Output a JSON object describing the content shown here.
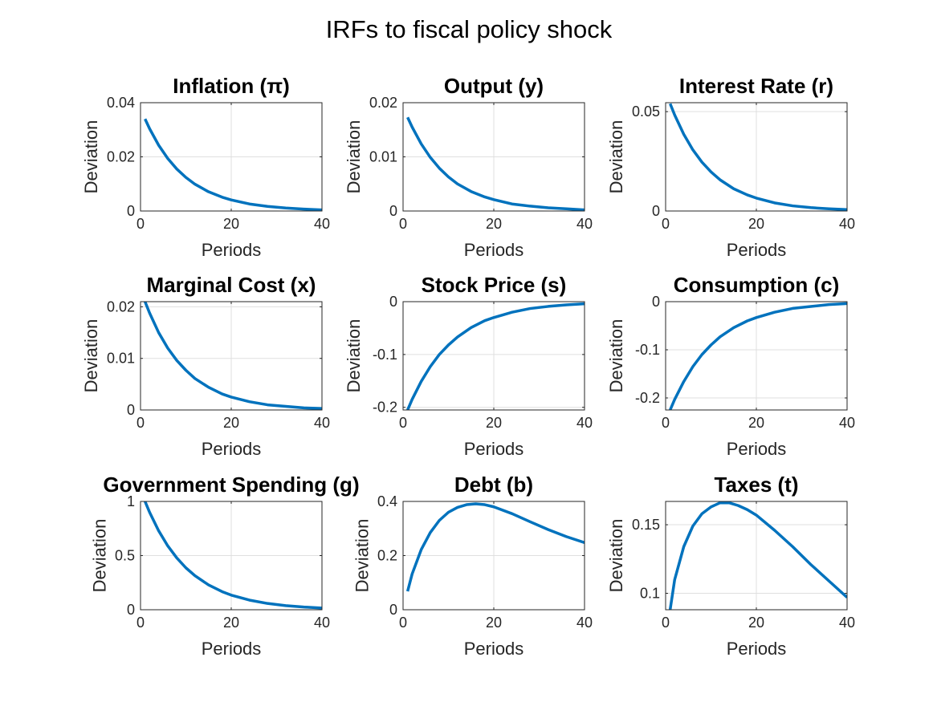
{
  "figure": {
    "title": "IRFs to fiscal policy shock",
    "line_color": "#0072BD",
    "grid": true
  },
  "chart_data": [
    {
      "type": "line",
      "title": "Inflation (π)",
      "xlabel": "Periods",
      "ylabel": "Deviation",
      "xlim": [
        0,
        40
      ],
      "ylim": [
        0,
        0.04
      ],
      "xticks": [
        0,
        20,
        40
      ],
      "xtick_labels": [
        "0",
        "20",
        "40"
      ],
      "yticks": [
        0,
        0.02,
        0.04
      ],
      "ytick_labels": [
        "0",
        "0.02",
        "0.04"
      ],
      "x": [
        1,
        2,
        4,
        6,
        8,
        10,
        12,
        15,
        18,
        20,
        24,
        28,
        32,
        36,
        40
      ],
      "y": [
        0.034,
        0.0304,
        0.0243,
        0.0194,
        0.0155,
        0.0124,
        0.0099,
        0.0071,
        0.0051,
        0.0041,
        0.0026,
        0.0017,
        0.0011,
        0.0007,
        0.0004
      ]
    },
    {
      "type": "line",
      "title": "Output (y)",
      "xlabel": "Periods",
      "ylabel": "Deviation",
      "xlim": [
        0,
        40
      ],
      "ylim": [
        0,
        0.02
      ],
      "xticks": [
        0,
        20,
        40
      ],
      "xtick_labels": [
        "0",
        "20",
        "40"
      ],
      "yticks": [
        0,
        0.01,
        0.02
      ],
      "ytick_labels": [
        "0",
        "0.01",
        "0.02"
      ],
      "x": [
        1,
        2,
        4,
        6,
        8,
        10,
        12,
        15,
        18,
        20,
        24,
        28,
        32,
        36,
        40
      ],
      "y": [
        0.0173,
        0.0155,
        0.0124,
        0.0099,
        0.0079,
        0.0063,
        0.005,
        0.0036,
        0.0026,
        0.0021,
        0.0013,
        0.0009,
        0.0006,
        0.0004,
        0.0002
      ]
    },
    {
      "type": "line",
      "title": "Interest Rate (r)",
      "xlabel": "Periods",
      "ylabel": "Deviation",
      "xlim": [
        0,
        40
      ],
      "ylim": [
        0,
        0.0545
      ],
      "xticks": [
        0,
        20,
        40
      ],
      "xtick_labels": [
        "0",
        "20",
        "40"
      ],
      "yticks": [
        0,
        0.05
      ],
      "ytick_labels": [
        "0",
        "0.05"
      ],
      "x": [
        1,
        2,
        4,
        6,
        8,
        10,
        12,
        15,
        18,
        20,
        24,
        28,
        32,
        36,
        40
      ],
      "y": [
        0.054,
        0.0483,
        0.0386,
        0.0308,
        0.0246,
        0.0197,
        0.0157,
        0.0112,
        0.0081,
        0.0065,
        0.0041,
        0.0026,
        0.0017,
        0.0011,
        0.0007
      ]
    },
    {
      "type": "line",
      "title": "Marginal Cost (x)",
      "xlabel": "Periods",
      "ylabel": "Deviation",
      "xlim": [
        0,
        40
      ],
      "ylim": [
        0,
        0.021
      ],
      "xticks": [
        0,
        20,
        40
      ],
      "xtick_labels": [
        "0",
        "20",
        "40"
      ],
      "yticks": [
        0,
        0.01,
        0.02
      ],
      "ytick_labels": [
        "0",
        "0.01",
        "0.02"
      ],
      "x": [
        1,
        2,
        4,
        6,
        8,
        10,
        12,
        15,
        18,
        20,
        24,
        28,
        32,
        36,
        40
      ],
      "y": [
        0.021,
        0.0188,
        0.015,
        0.012,
        0.0096,
        0.0077,
        0.0061,
        0.0044,
        0.0031,
        0.0025,
        0.0016,
        0.001,
        0.0007,
        0.0004,
        0.0003
      ]
    },
    {
      "type": "line",
      "title": "Stock Price (s)",
      "xlabel": "Periods",
      "ylabel": "Deviation",
      "xlim": [
        0,
        40
      ],
      "ylim": [
        -0.205,
        0
      ],
      "xticks": [
        0,
        20,
        40
      ],
      "xtick_labels": [
        "0",
        "20",
        "40"
      ],
      "yticks": [
        -0.2,
        -0.1,
        0
      ],
      "ytick_labels": [
        "-0.2",
        "-0.1",
        "0"
      ],
      "x": [
        1,
        2,
        4,
        6,
        8,
        10,
        12,
        15,
        18,
        20,
        24,
        28,
        32,
        36,
        40
      ],
      "y": [
        -0.205,
        -0.185,
        -0.151,
        -0.123,
        -0.1,
        -0.082,
        -0.067,
        -0.049,
        -0.036,
        -0.03,
        -0.02,
        -0.013,
        -0.009,
        -0.006,
        -0.004
      ]
    },
    {
      "type": "line",
      "title": "Consumption (c)",
      "xlabel": "Periods",
      "ylabel": "Deviation",
      "xlim": [
        0,
        40
      ],
      "ylim": [
        -0.225,
        0
      ],
      "xticks": [
        0,
        20,
        40
      ],
      "xtick_labels": [
        "0",
        "20",
        "40"
      ],
      "yticks": [
        -0.2,
        -0.1,
        0
      ],
      "ytick_labels": [
        "-0.2",
        "-0.1",
        "0"
      ],
      "x": [
        1,
        2,
        4,
        6,
        8,
        10,
        12,
        15,
        18,
        20,
        24,
        28,
        32,
        36,
        40
      ],
      "y": [
        -0.225,
        -0.203,
        -0.166,
        -0.135,
        -0.11,
        -0.09,
        -0.073,
        -0.054,
        -0.04,
        -0.033,
        -0.022,
        -0.014,
        -0.01,
        -0.006,
        -0.004
      ]
    },
    {
      "type": "line",
      "title": "Government Spending (g)",
      "xlabel": "Periods",
      "ylabel": "Deviation",
      "xlim": [
        0,
        40
      ],
      "ylim": [
        0,
        1
      ],
      "xticks": [
        0,
        20,
        40
      ],
      "xtick_labels": [
        "0",
        "20",
        "40"
      ],
      "yticks": [
        0,
        0.5,
        1
      ],
      "ytick_labels": [
        "0",
        "0.5",
        "1"
      ],
      "x": [
        1,
        2,
        4,
        6,
        8,
        10,
        12,
        15,
        18,
        20,
        24,
        28,
        32,
        36,
        40
      ],
      "y": [
        1.0,
        0.9,
        0.729,
        0.59,
        0.478,
        0.387,
        0.314,
        0.229,
        0.167,
        0.135,
        0.089,
        0.058,
        0.038,
        0.025,
        0.016
      ]
    },
    {
      "type": "line",
      "title": "Debt (b)",
      "xlabel": "Periods",
      "ylabel": "Deviation",
      "xlim": [
        0,
        40
      ],
      "ylim": [
        0,
        0.4
      ],
      "xticks": [
        0,
        20,
        40
      ],
      "xtick_labels": [
        "0",
        "20",
        "40"
      ],
      "yticks": [
        0,
        0.2,
        0.4
      ],
      "ytick_labels": [
        "0",
        "0.2",
        "0.4"
      ],
      "x": [
        1,
        2,
        4,
        6,
        8,
        10,
        12,
        14,
        16,
        18,
        20,
        24,
        28,
        32,
        36,
        40
      ],
      "y": [
        0.068,
        0.132,
        0.222,
        0.285,
        0.33,
        0.36,
        0.378,
        0.388,
        0.391,
        0.388,
        0.38,
        0.355,
        0.325,
        0.296,
        0.27,
        0.248
      ]
    },
    {
      "type": "line",
      "title": "Taxes (t)",
      "xlabel": "Periods",
      "ylabel": "Deviation",
      "xlim": [
        0,
        40
      ],
      "ylim": [
        0.088,
        0.167
      ],
      "xticks": [
        0,
        20,
        40
      ],
      "xtick_labels": [
        "0",
        "20",
        "40"
      ],
      "yticks": [
        0.1,
        0.15
      ],
      "ytick_labels": [
        "0.1",
        "0.15"
      ],
      "x": [
        1,
        2,
        4,
        6,
        8,
        10,
        12,
        14,
        16,
        18,
        20,
        24,
        28,
        32,
        36,
        40
      ],
      "y": [
        0.088,
        0.11,
        0.134,
        0.149,
        0.158,
        0.163,
        0.166,
        0.166,
        0.164,
        0.161,
        0.157,
        0.146,
        0.134,
        0.121,
        0.109,
        0.097
      ]
    }
  ]
}
